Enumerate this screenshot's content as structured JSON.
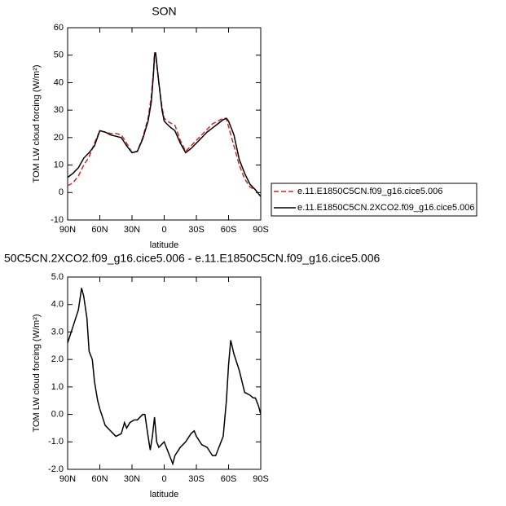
{
  "chart_data": [
    {
      "type": "line",
      "title": "SON",
      "x_label": "latitude",
      "y_label": "TOM LW cloud forcing (W/m²)",
      "x": [
        90,
        85,
        80,
        75,
        70,
        65,
        60,
        55,
        50,
        45,
        40,
        35,
        30,
        25,
        20,
        15,
        12,
        10,
        9,
        8,
        5,
        2,
        0,
        -5,
        -10,
        -15,
        -20,
        -25,
        -30,
        -35,
        -40,
        -45,
        -50,
        -55,
        -58,
        -60,
        -65,
        -70,
        -75,
        -80,
        -85,
        -90
      ],
      "series": [
        {
          "name": "e.11.E1850C5CN.f09_g16.cice5.006",
          "color": "#dd2222",
          "dash": true,
          "values": [
            2.5,
            3.5,
            6,
            10,
            13,
            18,
            22.5,
            22,
            21.5,
            21.5,
            21,
            18,
            14.5,
            15,
            20,
            27,
            35,
            44,
            51,
            50,
            40,
            31,
            27,
            25.5,
            24.5,
            19,
            15,
            17,
            19,
            21,
            23,
            25,
            26,
            27,
            27,
            24,
            17,
            10,
            5,
            2,
            1,
            -1.5
          ]
        },
        {
          "name": "e.11.E1850C5CN.2XCO2.f09_g16.cice5.006",
          "color": "#000000",
          "dash": false,
          "values": [
            5.5,
            7,
            9,
            12.5,
            14.5,
            17,
            22.5,
            22,
            21,
            20.5,
            20,
            17,
            14.5,
            15,
            19.5,
            26,
            33,
            43,
            50,
            51,
            40,
            30,
            26,
            24,
            22.5,
            18,
            14.5,
            16,
            18,
            20,
            22,
            23.5,
            25,
            26.5,
            27,
            26,
            21,
            12,
            7,
            3,
            1,
            -1.5
          ]
        }
      ],
      "xlim": [
        90,
        -90
      ],
      "xticks": [
        {
          "value": 90,
          "label": "90N"
        },
        {
          "value": 60,
          "label": "60N"
        },
        {
          "value": 30,
          "label": "30N"
        },
        0,
        {
          "value": -30,
          "label": "30S"
        },
        {
          "value": -60,
          "label": "60S"
        },
        {
          "value": -90,
          "label": "90S"
        }
      ],
      "ylim": [
        -10,
        60
      ],
      "yticks": [
        -10,
        0,
        10,
        20,
        30,
        40,
        50,
        60
      ]
    },
    {
      "type": "line",
      "title": "50C5CN.2XCO2.f09_g16.cice5.006 - e.11.E1850C5CN.f09_g16.cice5.006",
      "x_label": "latitude",
      "y_label": "TOM LW cloud forcing (W/m²)",
      "x": [
        90,
        85,
        80,
        77,
        75,
        72,
        70,
        67,
        65,
        62,
        60,
        55,
        50,
        45,
        40,
        37,
        35,
        32,
        28,
        25,
        20,
        18,
        15,
        13,
        11,
        9,
        7,
        5,
        0,
        -3,
        -5,
        -8,
        -10,
        -15,
        -20,
        -25,
        -28,
        -30,
        -35,
        -40,
        -45,
        -48,
        -50,
        -55,
        -58,
        -60,
        -62,
        -65,
        -70,
        -75,
        -80,
        -83,
        -85,
        -88,
        -90
      ],
      "series": [
        {
          "color": "#000000",
          "dash": false,
          "values": [
            2.6,
            3.2,
            3.8,
            4.6,
            4.3,
            3.5,
            2.3,
            2.0,
            1.2,
            0.5,
            0.2,
            -0.4,
            -0.6,
            -0.8,
            -0.7,
            -0.3,
            -0.5,
            -0.3,
            -0.2,
            -0.2,
            0.0,
            0.0,
            -0.8,
            -1.3,
            -0.8,
            -0.1,
            -1.0,
            -1.2,
            -1.0,
            -1.3,
            -1.5,
            -1.8,
            -1.5,
            -1.2,
            -1.0,
            -0.7,
            -0.6,
            -0.8,
            -1.1,
            -1.2,
            -1.5,
            -1.5,
            -1.3,
            -0.8,
            0.5,
            1.8,
            2.7,
            2.2,
            1.6,
            0.8,
            0.7,
            0.6,
            0.6,
            0.3,
            0.0
          ]
        }
      ],
      "xlim": [
        90,
        -90
      ],
      "xticks": [
        {
          "value": 90,
          "label": "90N"
        },
        {
          "value": 60,
          "label": "60N"
        },
        {
          "value": 30,
          "label": "30N"
        },
        0,
        {
          "value": -30,
          "label": "30S"
        },
        {
          "value": -60,
          "label": "60S"
        },
        {
          "value": -90,
          "label": "90S"
        }
      ],
      "ylim": [
        -2,
        5
      ],
      "yticks": [
        {
          "value": -2,
          "label": "-2.0"
        },
        {
          "value": -1,
          "label": "-1.0"
        },
        {
          "value": 0,
          "label": "0.0"
        },
        {
          "value": 1,
          "label": "1.0"
        },
        {
          "value": 2,
          "label": "2.0"
        },
        {
          "value": 3,
          "label": "3.0"
        },
        {
          "value": 4,
          "label": "4.0"
        },
        {
          "value": 5,
          "label": "5.0"
        }
      ]
    }
  ]
}
